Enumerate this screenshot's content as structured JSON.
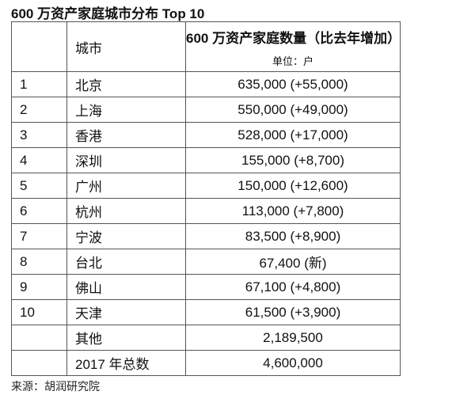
{
  "title": "600 万资产家庭城市分布 Top 10",
  "table": {
    "header": {
      "rank": "",
      "city": "城市",
      "count": "600 万资产家庭数量（比去年增加）",
      "unit": "单位：户"
    },
    "rows": [
      {
        "rank": "1",
        "city": "北京",
        "count": "635,000 (+55,000)"
      },
      {
        "rank": "2",
        "city": "上海",
        "count": "550,000 (+49,000)"
      },
      {
        "rank": "3",
        "city": "香港",
        "count": "528,000 (+17,000)"
      },
      {
        "rank": "4",
        "city": "深圳",
        "count": "155,000 (+8,700)"
      },
      {
        "rank": "5",
        "city": "广州",
        "count": "150,000 (+12,600)"
      },
      {
        "rank": "6",
        "city": "杭州",
        "count": "113,000 (+7,800)"
      },
      {
        "rank": "7",
        "city": "宁波",
        "count": "83,500 (+8,900)"
      },
      {
        "rank": "8",
        "city": "台北",
        "count": "67,400 (新)"
      },
      {
        "rank": "9",
        "city": "佛山",
        "count": "67,100 (+4,800)"
      },
      {
        "rank": "10",
        "city": "天津",
        "count": "61,500 (+3,900)"
      },
      {
        "rank": "",
        "city": "其他",
        "count": "2,189,500"
      },
      {
        "rank": "",
        "city": "2017 年总数",
        "count": "4,600,000"
      }
    ]
  },
  "source": "来源：胡润研究院"
}
